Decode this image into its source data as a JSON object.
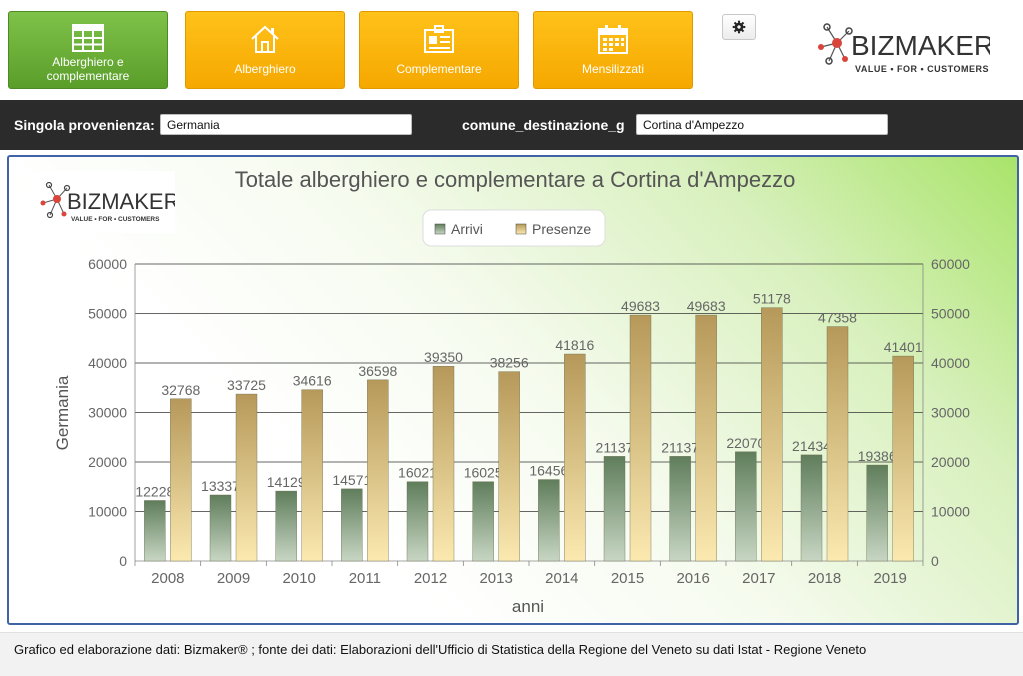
{
  "nav": {
    "buttons": [
      {
        "label": "Alberghiero e complementare",
        "icon": "table-icon",
        "active": true
      },
      {
        "label": "Alberghiero",
        "icon": "house-icon",
        "active": false
      },
      {
        "label": "Complementare",
        "icon": "id-card-icon",
        "active": false
      },
      {
        "label": "Mensilizzati",
        "icon": "calendar-icon",
        "active": false
      }
    ],
    "settings_icon": "gear-icon"
  },
  "logo": {
    "name": "BIZMAKER",
    "tagline": "VALUE • FOR • CUSTOMERS"
  },
  "filters": {
    "provenienza_label": "Singola provenienza:",
    "provenienza_value": "Germania",
    "destinazione_label": "comune_destinazione_g",
    "destinazione_value": "Cortina d'Ampezzo"
  },
  "chart_data": {
    "type": "bar",
    "title": "Totale alberghiero e complementare a Cortina d'Ampezzo",
    "xlabel": "anni",
    "ylabel": "Germania",
    "ylim": [
      0,
      60000
    ],
    "yticks": [
      0,
      10000,
      20000,
      30000,
      40000,
      50000,
      60000
    ],
    "secondary_axis": true,
    "grid": true,
    "legend_position": "top-center",
    "categories": [
      "2008",
      "2009",
      "2010",
      "2011",
      "2012",
      "2013",
      "2014",
      "2015",
      "2016",
      "2017",
      "2018",
      "2019"
    ],
    "series": [
      {
        "name": "Arrivi",
        "color": "#7d9a78",
        "values": [
          12228,
          13337,
          14129,
          14571,
          16021,
          16025,
          16456,
          21137,
          21137,
          22070,
          21434,
          19386
        ]
      },
      {
        "name": "Presenze",
        "color": "#d9bd6f",
        "values": [
          32768,
          33725,
          34616,
          36598,
          39350,
          38256,
          41816,
          49683,
          49683,
          51178,
          47358,
          41401
        ]
      }
    ]
  },
  "footer": {
    "text": "Grafico ed elaborazione dati: Bizmaker® ; fonte dei dati: Elaborazioni dell'Ufficio di Statistica della Regione del Veneto  su dati Istat - Regione Veneto"
  }
}
